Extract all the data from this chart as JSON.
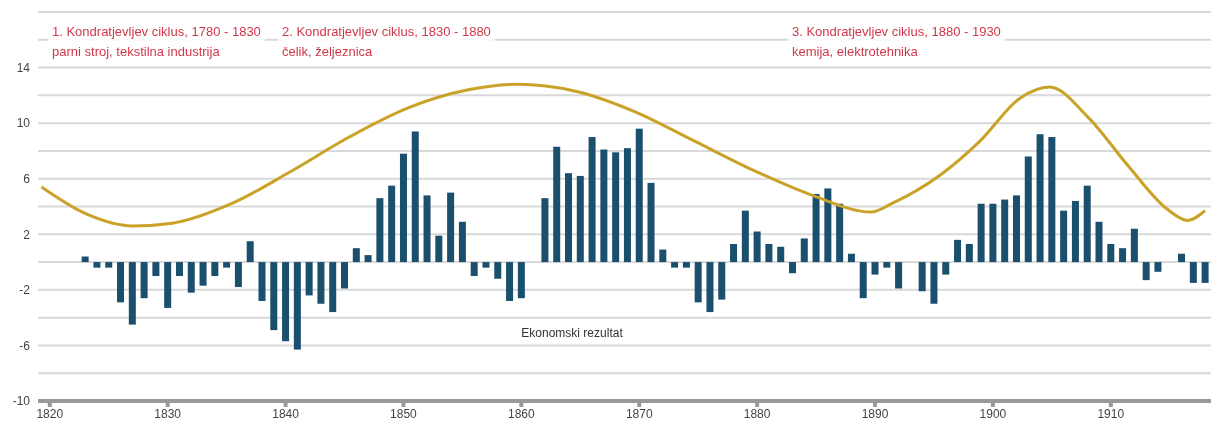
{
  "chart_data": {
    "type": "bar",
    "xlim": [
      1819,
      1918.5
    ],
    "xticks": [
      1820,
      1830,
      1840,
      1850,
      1860,
      1870,
      1880,
      1890,
      1900,
      1910
    ],
    "ylim": [
      -10,
      18
    ],
    "yticks": [
      -10,
      {
        "value": -8,
        "label": null
      },
      -6,
      {
        "value": -4,
        "label": null
      },
      -2,
      {
        "value": 0,
        "label": null
      },
      2,
      {
        "value": 4,
        "label": null
      },
      6,
      {
        "value": 8,
        "label": null
      },
      10,
      {
        "value": 12,
        "label": null
      },
      14,
      {
        "value": 16,
        "label": null
      },
      {
        "value": 18,
        "label": null
      }
    ],
    "grid": "y",
    "annotations": [
      "1. Kondratjevljev ciklus, 1780 - 1830\nparni stroj, tekstilna industrija",
      "2. Kondratjevljev ciklus, 1830 - 1880\nčelik, željeznica",
      "3. Kondratjevljev ciklus, 1880 - 1930\nkemija, elektrotehnika"
    ],
    "series": [
      {
        "name": "Ekonomski rezultat",
        "color": "#1b4f6e",
        "x": [
          1823,
          1824,
          1825,
          1826,
          1827,
          1828,
          1829,
          1830,
          1831,
          1832,
          1833,
          1834,
          1835,
          1836,
          1837,
          1838,
          1839,
          1840,
          1841,
          1842,
          1843,
          1844,
          1845,
          1846,
          1847,
          1848,
          1849,
          1850,
          1851,
          1852,
          1853,
          1854,
          1855,
          1856,
          1857,
          1858,
          1859,
          1860,
          1861,
          1862,
          1863,
          1864,
          1865,
          1866,
          1867,
          1868,
          1869,
          1870,
          1871,
          1872,
          1873,
          1874,
          1875,
          1876,
          1877,
          1878,
          1879,
          1880,
          1881,
          1882,
          1883,
          1884,
          1885,
          1886,
          1887,
          1888,
          1889,
          1890,
          1891,
          1892,
          1893,
          1894,
          1895,
          1896,
          1897,
          1898,
          1899,
          1900,
          1901,
          1902,
          1903,
          1904,
          1905,
          1906,
          1907,
          1908,
          1909,
          1910,
          1911,
          1912,
          1913,
          1914,
          1915,
          1916,
          1917,
          1918
        ],
        "values": [
          0.4,
          -0.4,
          -0.4,
          -2.9,
          -4.5,
          -2.6,
          -1.0,
          -3.3,
          -1.0,
          -2.2,
          -1.7,
          -1.0,
          -0.4,
          -1.8,
          1.5,
          -2.8,
          -4.9,
          -5.7,
          -6.3,
          -2.4,
          -3.0,
          -3.6,
          -1.9,
          1.0,
          0.5,
          4.6,
          5.5,
          7.8,
          9.4,
          4.8,
          1.9,
          5.0,
          2.9,
          -1.0,
          -0.4,
          -1.2,
          -2.8,
          -2.6,
          null,
          4.6,
          8.3,
          6.4,
          6.2,
          9.0,
          8.1,
          7.9,
          8.2,
          9.6,
          5.7,
          0.9,
          -0.4,
          -0.4,
          -2.9,
          -3.6,
          -2.7,
          1.3,
          3.7,
          2.2,
          1.3,
          1.1,
          -0.8,
          1.7,
          4.9,
          5.3,
          4.2,
          0.6,
          -2.6,
          -0.9,
          -0.4,
          -1.9,
          null,
          -2.1,
          -3.0,
          -0.9,
          1.6,
          1.3,
          4.2,
          4.2,
          4.5,
          4.8,
          7.6,
          9.2,
          9.0,
          3.7,
          4.4,
          5.5,
          2.9,
          1.3,
          1.0,
          2.4,
          -1.3,
          -0.7,
          null,
          0.6,
          -1.5,
          -1.5
        ]
      },
      {
        "type": "line",
        "color": "#c9a227",
        "x": [
          1819.3,
          1823,
          1827,
          1830.4,
          1835.4,
          1840.4,
          1845.4,
          1850.4,
          1855.5,
          1859.6,
          1864.6,
          1869.7,
          1874.7,
          1879.7,
          1884.7,
          1889.7,
          1891.4,
          1895.6,
          1898.9,
          1902.3,
          1904.8,
          1908.1,
          1911.5,
          1914.8,
          1916.5,
          1918
        ],
        "values": [
          5.4,
          3.5,
          2.6,
          2.8,
          4.2,
          6.5,
          9.0,
          11.1,
          12.4,
          12.8,
          12.3,
          10.8,
          8.7,
          6.6,
          4.8,
          3.6,
          4.2,
          6.3,
          8.7,
          11.8,
          12.6,
          10.4,
          6.9,
          3.8,
          3.0,
          3.7
        ]
      }
    ]
  }
}
